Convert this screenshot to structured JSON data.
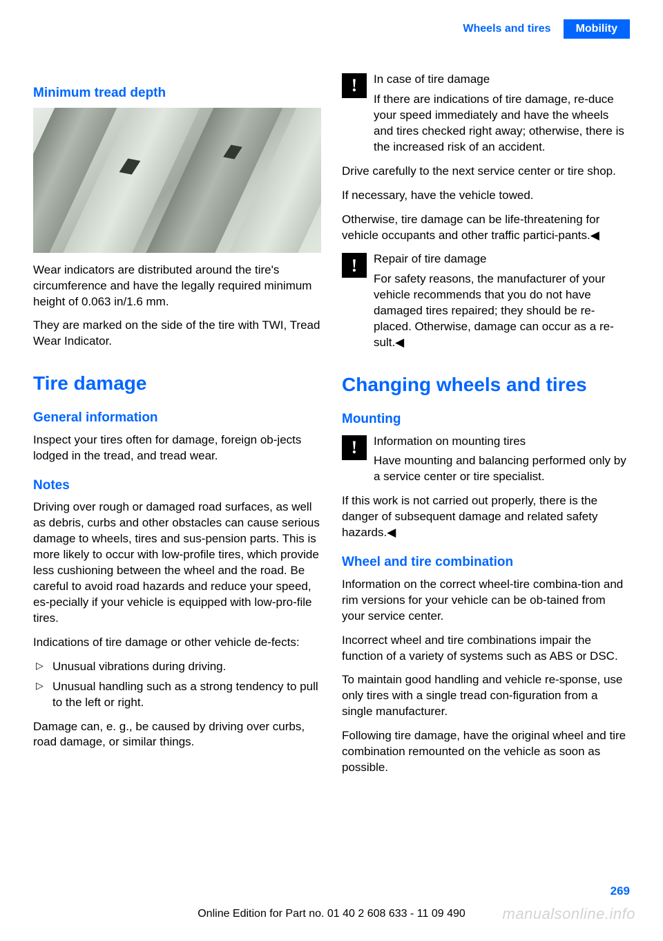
{
  "header": {
    "section": "Wheels and tires",
    "chapter": "Mobility"
  },
  "col_left": {
    "h2_1": "Minimum tread depth",
    "p1": "Wear indicators are distributed around the tire's circumference and have the legally required minimum height of 0.063 in/1.6 mm.",
    "p2": "They are marked on the side of the tire with TWI, Tread Wear Indicator.",
    "h1_1": "Tire damage",
    "h2_2": "General information",
    "p3": "Inspect your tires often for damage, foreign ob‐jects lodged in the tread, and tread wear.",
    "h2_3": "Notes",
    "p4": "Driving over rough or damaged road surfaces, as well as debris, curbs and other obstacles can cause serious damage to wheels, tires and sus‐pension parts. This is more likely to occur with low-profile tires, which provide less cushioning between the wheel and the road. Be careful to avoid road hazards and reduce your speed, es‐pecially if your vehicle is equipped with low-pro‐file tires.",
    "p5": "Indications of tire damage or other vehicle de‐fects:",
    "li1": "Unusual vibrations during driving.",
    "li2": "Unusual handling such as a strong tendency to pull to the left or right.",
    "p6": "Damage can, e. g., be caused by driving over curbs, road damage, or similar things."
  },
  "col_right": {
    "warn1_title": "In case of tire damage",
    "warn1_body": "If there are indications of tire damage, re‐duce your speed immediately and have the wheels and tires checked right away; otherwise, there is the increased risk of an accident.",
    "p1": "Drive carefully to the next service center or tire shop.",
    "p2": "If necessary, have the vehicle towed.",
    "p3": "Otherwise, tire damage can be life-threatening for vehicle occupants and other traffic partici‐pants.◀",
    "warn2_title": "Repair of tire damage",
    "warn2_body": "For safety reasons, the manufacturer of your vehicle recommends that you do not have damaged tires repaired; they should be re‐placed. Otherwise, damage can occur as a re‐sult.◀",
    "h1_1": "Changing wheels and tires",
    "h2_1": "Mounting",
    "warn3_title": "Information on mounting tires",
    "warn3_body": "Have mounting and balancing performed only by a service center or tire specialist.",
    "p4": "If this work is not carried out properly, there is the danger of subsequent damage and related safety hazards.◀",
    "h2_2": "Wheel and tire combination",
    "p5": "Information on the correct wheel-tire combina‐tion and rim versions for your vehicle can be ob‐tained from your service center.",
    "p6": "Incorrect wheel and tire combinations impair the function of a variety of systems such as ABS or DSC.",
    "p7": "To maintain good handling and vehicle re‐sponse, use only tires with a single tread con‐figuration from a single manufacturer.",
    "p8": "Following tire damage, have the original wheel and tire combination remounted on the vehicle as soon as possible."
  },
  "page_number": "269",
  "footer": "Online Edition for Part no. 01 40 2 608 633 - 11 09 490",
  "watermark": "manualsonline.info",
  "colors": {
    "brand_blue": "#0066ff"
  }
}
